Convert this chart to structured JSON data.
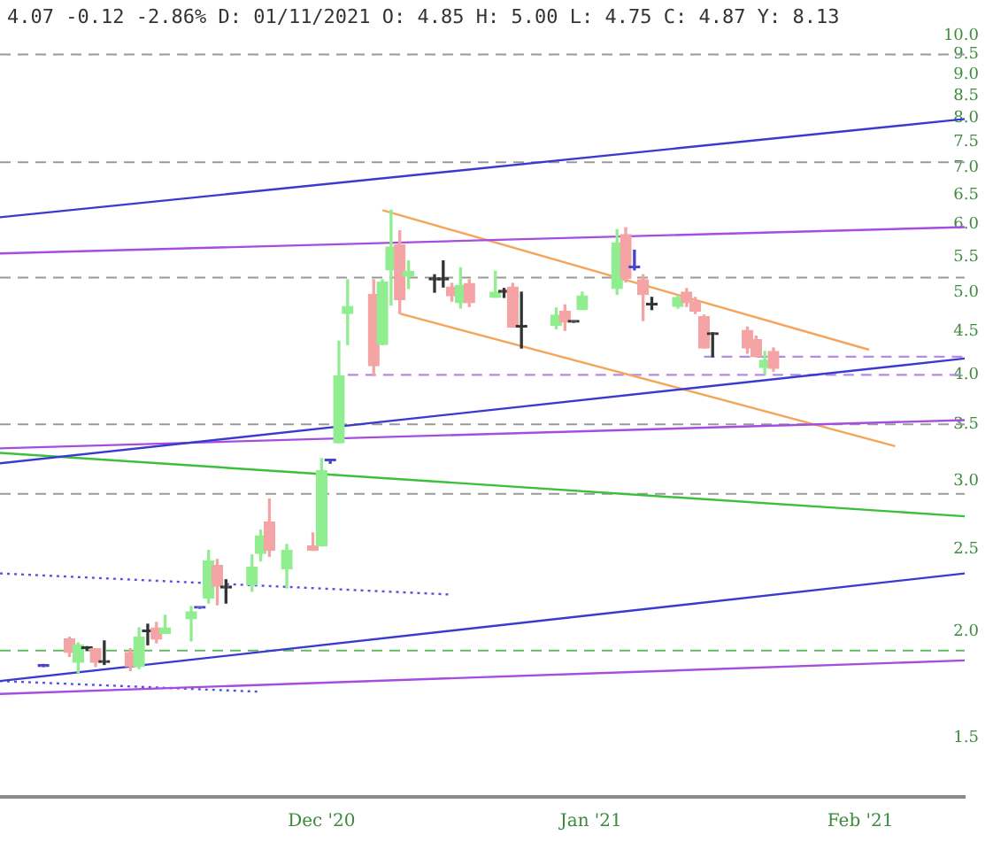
{
  "chart_data": {
    "type": "candlestick",
    "title": "4.07 -0.12 -2.86% D: 01/11/2021 O: 4.85 H: 5.00 L: 4.75 C: 4.87 Y: 8.13",
    "x": [
      "2020-10-30",
      "2020-11-02",
      "2020-11-03",
      "2020-11-04",
      "2020-11-05",
      "2020-11-06",
      "2020-11-09",
      "2020-11-10",
      "2020-11-11",
      "2020-11-12",
      "2020-11-13",
      "2020-11-16",
      "2020-11-17",
      "2020-11-18",
      "2020-11-19",
      "2020-11-20",
      "2020-11-23",
      "2020-11-24",
      "2020-11-25",
      "2020-11-27",
      "2020-11-30",
      "2020-12-01",
      "2020-12-02",
      "2020-12-03",
      "2020-12-04",
      "2020-12-07",
      "2020-12-08",
      "2020-12-09",
      "2020-12-10",
      "2020-12-11",
      "2020-12-14",
      "2020-12-15",
      "2020-12-16",
      "2020-12-17",
      "2020-12-18",
      "2020-12-21",
      "2020-12-22",
      "2020-12-23",
      "2020-12-24",
      "2020-12-28",
      "2020-12-29",
      "2020-12-30",
      "2020-12-31",
      "2021-01-04",
      "2021-01-05",
      "2021-01-06",
      "2021-01-07",
      "2021-01-08",
      "2021-01-11",
      "2021-01-12",
      "2021-01-13",
      "2021-01-14",
      "2021-01-15",
      "2021-01-19",
      "2021-01-20",
      "2021-01-21",
      "2021-01-22"
    ],
    "ohlc": [
      [
        1.82,
        1.83,
        1.82,
        1.82
      ],
      [
        1.96,
        1.97,
        1.87,
        1.89
      ],
      [
        1.84,
        1.94,
        1.79,
        1.93
      ],
      [
        1.91,
        1.92,
        1.9,
        1.91
      ],
      [
        1.91,
        1.91,
        1.82,
        1.84
      ],
      [
        1.84,
        1.95,
        1.83,
        1.84
      ],
      [
        1.89,
        1.91,
        1.8,
        1.82
      ],
      [
        1.82,
        2.02,
        1.81,
        1.97
      ],
      [
        2.0,
        2.04,
        1.93,
        2.0
      ],
      [
        2.02,
        2.05,
        1.94,
        1.96
      ],
      [
        1.99,
        2.09,
        1.99,
        2.02
      ],
      [
        2.07,
        2.14,
        1.95,
        2.11
      ],
      [
        2.13,
        2.13,
        2.13,
        2.13
      ],
      [
        2.19,
        2.49,
        2.16,
        2.42
      ],
      [
        2.39,
        2.43,
        2.15,
        2.26
      ],
      [
        2.25,
        2.3,
        2.16,
        2.25
      ],
      [
        2.27,
        2.46,
        2.23,
        2.38
      ],
      [
        2.47,
        2.63,
        2.42,
        2.59
      ],
      [
        2.69,
        2.86,
        2.45,
        2.49
      ],
      [
        2.37,
        2.53,
        2.25,
        2.49
      ],
      [
        2.52,
        2.61,
        2.49,
        2.49
      ],
      [
        2.52,
        3.19,
        2.52,
        3.09
      ],
      [
        3.17,
        3.18,
        3.15,
        3.17
      ],
      [
        3.33,
        4.38,
        3.33,
        3.99
      ],
      [
        4.72,
        5.17,
        4.34,
        4.81
      ],
      [
        4.97,
        5.17,
        3.99,
        4.1
      ],
      [
        4.34,
        5.17,
        4.34,
        5.14
      ],
      [
        5.31,
        6.24,
        4.83,
        5.65
      ],
      [
        5.68,
        5.9,
        4.72,
        4.9
      ],
      [
        5.22,
        5.44,
        5.05,
        5.29
      ],
      [
        5.17,
        5.24,
        5.0,
        5.17
      ],
      [
        5.17,
        5.44,
        5.07,
        5.17
      ],
      [
        5.07,
        5.12,
        4.88,
        4.95
      ],
      [
        4.86,
        5.34,
        4.79,
        5.09
      ],
      [
        5.12,
        5.17,
        4.81,
        4.86
      ],
      [
        4.93,
        5.29,
        4.93,
        5.0
      ],
      [
        5.0,
        5.05,
        4.93,
        5.0
      ],
      [
        5.07,
        5.12,
        4.55,
        4.55
      ],
      [
        4.55,
        5.0,
        4.3,
        4.55
      ],
      [
        4.57,
        4.79,
        4.53,
        4.7
      ],
      [
        4.75,
        4.83,
        4.51,
        4.61
      ],
      [
        4.61,
        4.61,
        4.61,
        4.61
      ],
      [
        4.77,
        5.0,
        4.77,
        4.95
      ],
      [
        5.05,
        5.92,
        4.97,
        5.71
      ],
      [
        5.84,
        5.95,
        5.14,
        5.19
      ],
      [
        5.34,
        5.6,
        5.31,
        5.34
      ],
      [
        5.17,
        5.24,
        4.63,
        4.97
      ],
      [
        4.83,
        4.93,
        4.77,
        4.83
      ],
      [
        4.81,
        4.95,
        4.79,
        4.93
      ],
      [
        5.0,
        5.05,
        4.81,
        4.86
      ],
      [
        4.88,
        4.93,
        4.72,
        4.75
      ],
      [
        4.68,
        4.7,
        4.3,
        4.3
      ],
      [
        4.46,
        4.48,
        4.2,
        4.46
      ],
      [
        4.51,
        4.55,
        4.24,
        4.3
      ],
      [
        4.4,
        4.44,
        4.2,
        4.2
      ],
      [
        4.08,
        4.26,
        4.01,
        4.16
      ],
      [
        4.26,
        4.3,
        4.04,
        4.07
      ]
    ],
    "colors": [
      "#4444cc",
      "#f4a4a4",
      "#90ee90",
      "#333333",
      "#f4a4a4",
      "#333333",
      "#f4a4a4",
      "#90ee90",
      "#333333",
      "#f4a4a4",
      "#90ee90",
      "#90ee90",
      "#4444cc",
      "#90ee90",
      "#f4a4a4",
      "#333333",
      "#90ee90",
      "#90ee90",
      "#f4a4a4",
      "#90ee90",
      "#f4a4a4",
      "#90ee90",
      "#4444cc",
      "#90ee90",
      "#90ee90",
      "#f4a4a4",
      "#90ee90",
      "#90ee90",
      "#f4a4a4",
      "#90ee90",
      "#333333",
      "#333333",
      "#f4a4a4",
      "#90ee90",
      "#f4a4a4",
      "#90ee90",
      "#333333",
      "#f4a4a4",
      "#333333",
      "#90ee90",
      "#f4a4a4",
      "#333333",
      "#90ee90",
      "#90ee90",
      "#f4a4a4",
      "#4444cc",
      "#f4a4a4",
      "#333333",
      "#90ee90",
      "#f4a4a4",
      "#f4a4a4",
      "#f4a4a4",
      "#333333",
      "#f4a4a4",
      "#f4a4a4",
      "#90ee90",
      "#f4a4a4"
    ],
    "series": [
      {
        "type": "line",
        "x": [
          "2020-10-25",
          "2021-02-13"
        ],
        "values": [
          6.12,
          7.98
        ],
        "color": "#3a3ad0",
        "line_style": "solid"
      },
      {
        "type": "line",
        "x": [
          "2020-10-25",
          "2021-02-13"
        ],
        "values": [
          5.55,
          5.96
        ],
        "color": "#a64de0",
        "line_style": "solid"
      },
      {
        "type": "line",
        "x": [
          "2020-10-25",
          "2021-02-13"
        ],
        "values": [
          3.15,
          4.18
        ],
        "color": "#3a3ad0",
        "line_style": "solid"
      },
      {
        "type": "line",
        "x": [
          "2020-10-25",
          "2021-02-13"
        ],
        "values": [
          3.28,
          3.54
        ],
        "color": "#a64de0",
        "line_style": "solid"
      },
      {
        "type": "line",
        "x": [
          "2020-10-25",
          "2021-02-13"
        ],
        "values": [
          3.24,
          2.73
        ],
        "color": "#3cc03c",
        "line_style": "solid"
      },
      {
        "type": "line",
        "x": [
          "2020-10-25",
          "2021-02-13"
        ],
        "values": [
          1.75,
          2.34
        ],
        "color": "#3a3ad0",
        "line_style": "solid"
      },
      {
        "type": "line",
        "x": [
          "2020-10-25",
          "2021-02-13"
        ],
        "values": [
          1.69,
          1.85
        ],
        "color": "#a64de0",
        "line_style": "solid"
      },
      {
        "type": "line",
        "x": [
          "2020-12-08",
          "2021-02-02"
        ],
        "values": [
          6.24,
          4.28
        ],
        "color": "#f5a55a",
        "line_style": "solid"
      },
      {
        "type": "line",
        "x": [
          "2020-12-10",
          "2021-02-05"
        ],
        "values": [
          4.72,
          3.3
        ],
        "color": "#f5a55a",
        "line_style": "solid"
      },
      {
        "type": "line",
        "x": [
          "2020-10-25",
          "2020-12-16"
        ],
        "values": [
          2.34,
          2.21
        ],
        "color": "#5555dd",
        "line_style": "dotted"
      },
      {
        "type": "line",
        "x": [
          "2020-10-25",
          "2020-11-24"
        ],
        "values": [
          1.75,
          1.7
        ],
        "color": "#5555dd",
        "line_style": "dotted"
      },
      {
        "type": "line",
        "x": [
          "2020-12-04",
          "2021-02-13"
        ],
        "values": [
          4.0,
          4.0
        ],
        "color": "#b58ce0",
        "line_style": "dashed"
      },
      {
        "type": "line",
        "x": [
          "2021-01-14",
          "2021-02-13"
        ],
        "values": [
          4.2,
          4.2
        ],
        "color": "#b58ce0",
        "line_style": "dashed"
      }
    ],
    "ref_lines": [
      {
        "axis": "y",
        "value": 9.5,
        "color": "#9a9a9a",
        "line_style": "dashed"
      },
      {
        "axis": "y",
        "value": 7.1,
        "color": "#9a9a9a",
        "line_style": "dashed"
      },
      {
        "axis": "y",
        "value": 5.2,
        "color": "#9a9a9a",
        "line_style": "dashed"
      },
      {
        "axis": "y",
        "value": 3.5,
        "color": "#9a9a9a",
        "line_style": "dashed"
      },
      {
        "axis": "y",
        "value": 2.9,
        "color": "#9a9a9a",
        "line_style": "dashed"
      },
      {
        "axis": "y",
        "value": 1.9,
        "color": "#66bb66",
        "line_style": "dashed"
      }
    ],
    "xlim": [
      "2020-10-25",
      "2021-02-13"
    ],
    "xticks": [
      {
        "value": "2020-12-01",
        "label": "Dec '20"
      },
      {
        "value": "2021-01-01",
        "label": "Jan '21"
      },
      {
        "value": "2021-02-01",
        "label": "Feb '21"
      }
    ],
    "ylim": [
      1.28,
      10
    ],
    "yticks": [
      {
        "value": 1.5,
        "label": "1.5"
      },
      {
        "value": 2,
        "label": "2.0"
      },
      {
        "value": 2.5,
        "label": "2.5"
      },
      {
        "value": 3,
        "label": "3.0"
      },
      {
        "value": 3.5,
        "label": "3.5"
      },
      {
        "value": 4,
        "label": "4.0"
      },
      {
        "value": 4.5,
        "label": "4.5"
      },
      {
        "value": 5,
        "label": "5.0"
      },
      {
        "value": 5.5,
        "label": "5.5"
      },
      {
        "value": 6,
        "label": "6.0"
      },
      {
        "value": 6.5,
        "label": "6.5"
      },
      {
        "value": 7,
        "label": "7.0"
      },
      {
        "value": 7.5,
        "label": "7.5"
      },
      {
        "value": 8,
        "label": "8.0"
      },
      {
        "value": 8.5,
        "label": "8.5"
      },
      {
        "value": 9,
        "label": "9.0"
      },
      {
        "value": 9.5,
        "label": "9.5"
      },
      {
        "value": 10,
        "label": "10.0"
      }
    ],
    "log": true,
    "grid": false,
    "legend": false
  }
}
